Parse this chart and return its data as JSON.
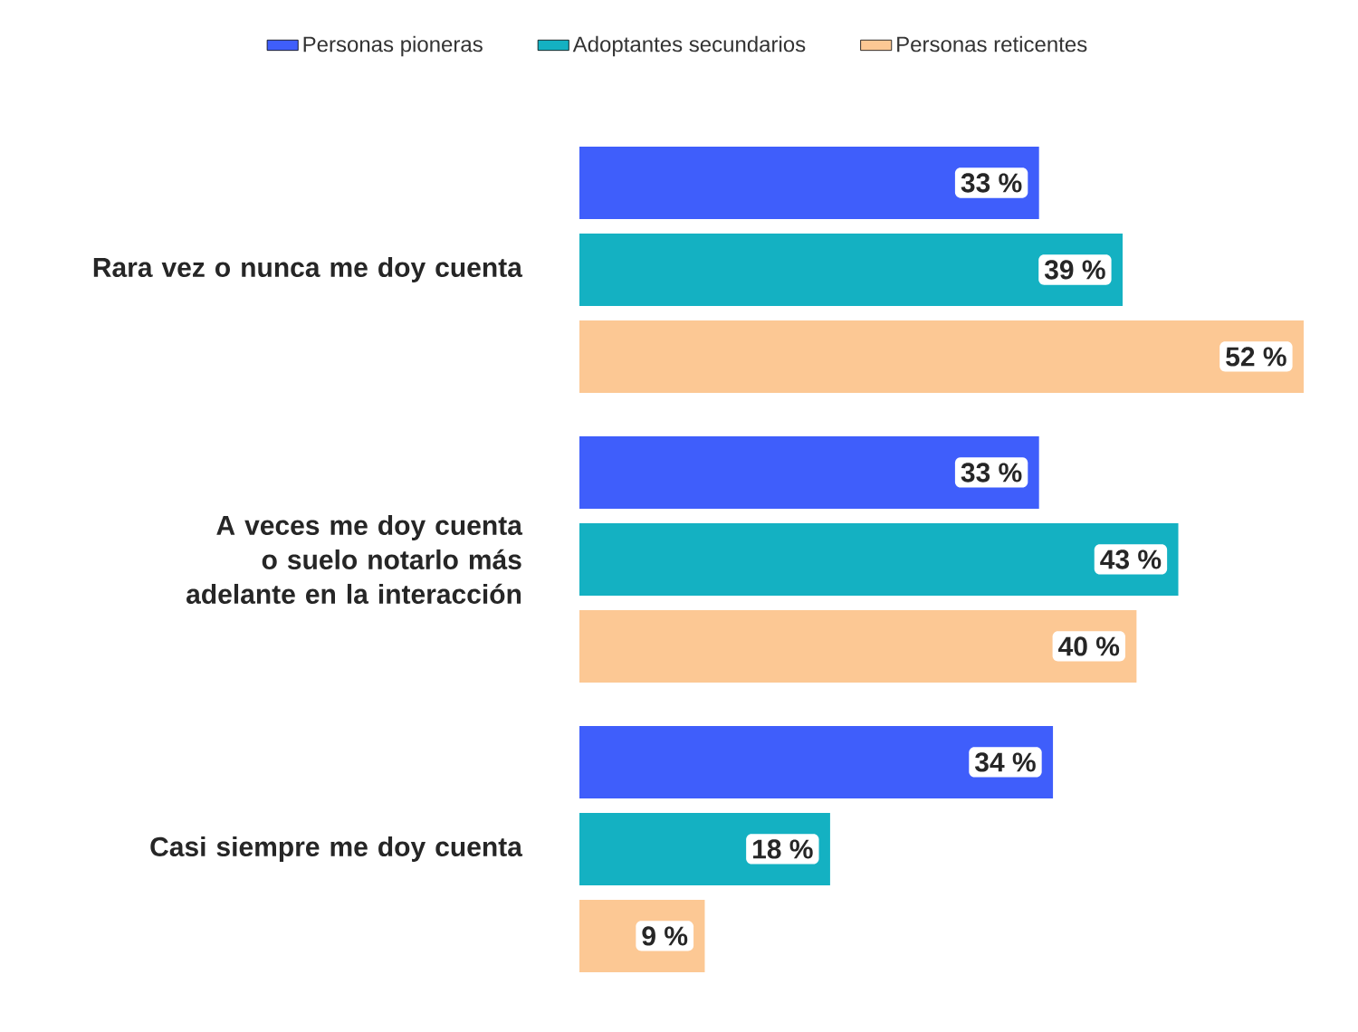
{
  "chart_data": {
    "type": "bar",
    "orientation": "horizontal",
    "legend": "top",
    "categories": [
      "Rara vez o nunca me doy cuenta",
      "A veces me doy cuenta o suelo notarlo más adelante en la interacción",
      "Casi siempre me doy cuenta"
    ],
    "series": [
      {
        "name": "Personas pioneras",
        "color": "#3f5efb",
        "values": [
          33,
          33,
          34
        ],
        "value_labels": [
          "33 %",
          "33 %",
          "34 %"
        ]
      },
      {
        "name": "Adoptantes secundarios",
        "color": "#14b1c2",
        "values": [
          39,
          43,
          18
        ],
        "value_labels": [
          "39 %",
          "43 %",
          "18 %"
        ]
      },
      {
        "name": "Personas reticentes",
        "color": "#fcc894",
        "values": [
          52,
          40,
          9
        ],
        "value_labels": [
          "52 %",
          "40 %",
          "9 %"
        ]
      }
    ]
  }
}
